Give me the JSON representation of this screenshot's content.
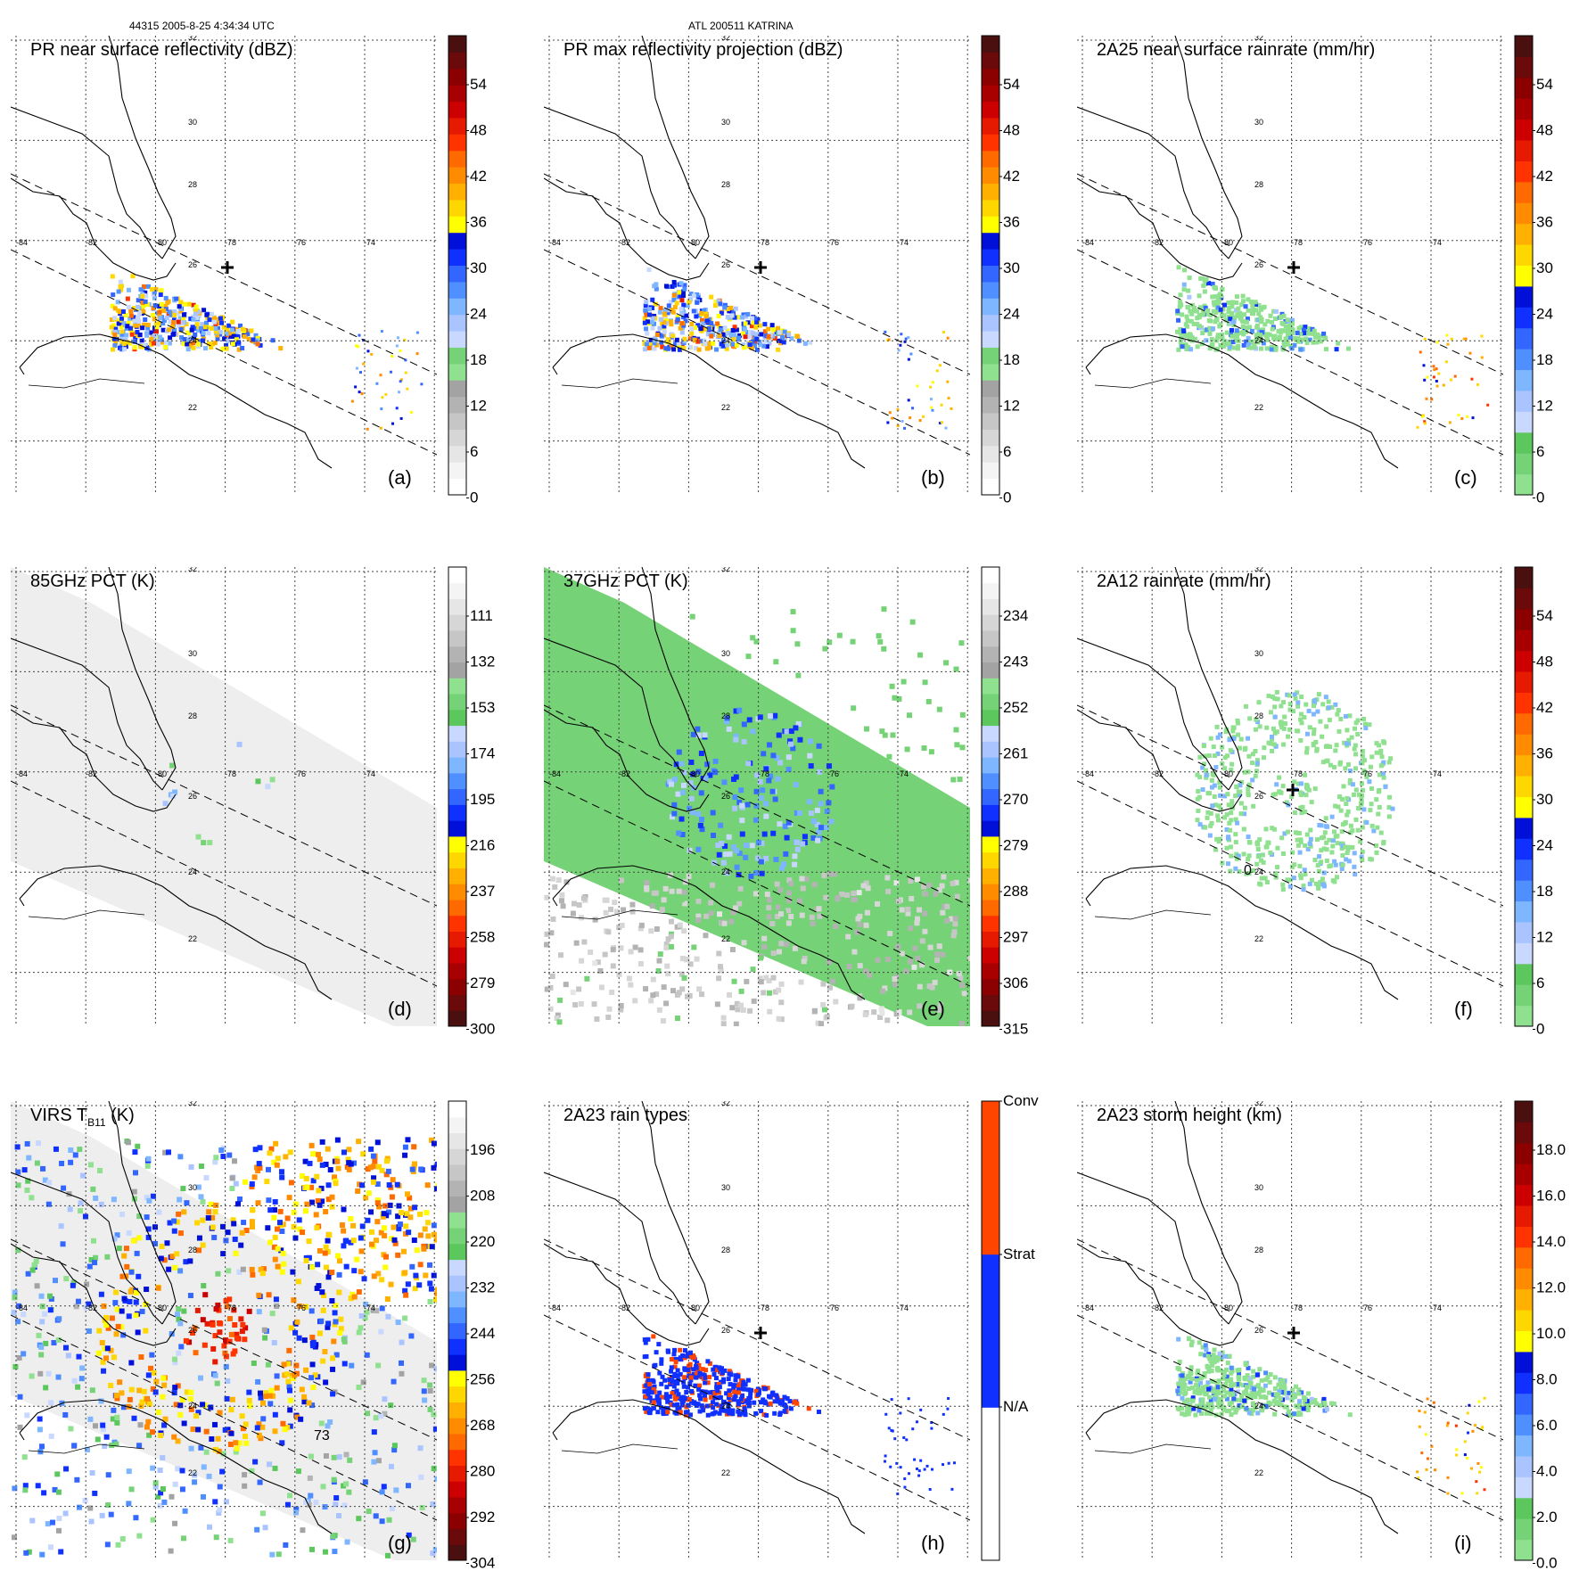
{
  "header": {
    "orbit_time": "44315 2005-8-25 4:34:34 UTC",
    "storm": "ATL 200511 KATRINA"
  },
  "palettes": {
    "refl": [
      "#ffffff",
      "#f4f4f4",
      "#e6e6e6",
      "#d6d6d6",
      "#c6c6c6",
      "#b3b3b3",
      "#a3a3a3",
      "#8fe08f",
      "#76d276",
      "#c8d8ff",
      "#a9c4ff",
      "#7eb6ff",
      "#4f8fff",
      "#3366ff",
      "#1030ff",
      "#0010d8",
      "#ffff00",
      "#ffd700",
      "#ffb000",
      "#ff8c00",
      "#ff6a00",
      "#ff3300",
      "#e61a00",
      "#cc0000",
      "#a80000",
      "#8b0000",
      "#6a0a0a",
      "#4a1010"
    ],
    "rain": [
      "#8fe08f",
      "#76d276",
      "#5cc75c",
      "#c8d8ff",
      "#a9c4ff",
      "#7eb6ff",
      "#4f8fff",
      "#3366ff",
      "#1030ff",
      "#0010d8",
      "#ffff00",
      "#ffd700",
      "#ffb000",
      "#ff8c00",
      "#ff6a00",
      "#ff3300",
      "#e61a00",
      "#cc0000",
      "#a80000",
      "#8b0000",
      "#6a0a0a",
      "#4a1010"
    ],
    "pct": [
      "#4a1010",
      "#6a0a0a",
      "#8b0000",
      "#a80000",
      "#cc0000",
      "#e61a00",
      "#ff3300",
      "#ff6a00",
      "#ff8c00",
      "#ffb000",
      "#ffd700",
      "#ffff00",
      "#0010d8",
      "#1030ff",
      "#3366ff",
      "#4f8fff",
      "#7eb6ff",
      "#a9c4ff",
      "#c8d8ff",
      "#5cc75c",
      "#76d276",
      "#8fe08f",
      "#a3a3a3",
      "#b3b3b3",
      "#c6c6c6",
      "#d6d6d6",
      "#e6e6e6",
      "#f4f4f4",
      "#ffffff"
    ],
    "types": [
      "#ffffff",
      "#ffffff",
      "#1030ff",
      "#1030ff",
      "#ff4500",
      "#ff4500"
    ]
  },
  "panels": [
    {
      "id": "a",
      "title": "PR near surface reflectivity (dBZ)",
      "letter": "(a)",
      "cbar_ticks": [
        "54",
        "48",
        "42",
        "36",
        "30",
        "24",
        "18",
        "12",
        "6",
        "0"
      ],
      "cbar_palette": "refl",
      "field": "refl"
    },
    {
      "id": "b",
      "title": "PR max reflectivity projection (dBZ)",
      "letter": "(b)",
      "cbar_ticks": [
        "54",
        "48",
        "42",
        "36",
        "30",
        "24",
        "18",
        "12",
        "6",
        "0"
      ],
      "cbar_palette": "refl",
      "field": "refl"
    },
    {
      "id": "c",
      "title": "2A25 near surface rainrate (mm/hr)",
      "letter": "(c)",
      "cbar_ticks": [
        "54",
        "48",
        "42",
        "36",
        "30",
        "24",
        "18",
        "12",
        "6",
        "0"
      ],
      "cbar_palette": "rain",
      "field": "rain"
    },
    {
      "id": "d",
      "title": "85GHz PCT (K)",
      "letter": "(d)",
      "cbar_ticks": [
        "111",
        "132",
        "153",
        "174",
        "195",
        "216",
        "237",
        "258",
        "279",
        "300"
      ],
      "cbar_palette": "pct",
      "field": "pct85"
    },
    {
      "id": "e",
      "title": "37GHz PCT (K)",
      "letter": "(e)",
      "cbar_ticks": [
        "234",
        "243",
        "252",
        "261",
        "270",
        "279",
        "288",
        "297",
        "306",
        "315"
      ],
      "cbar_palette": "pct",
      "field": "pct37"
    },
    {
      "id": "f",
      "title": "2A12 rainrate (mm/hr)",
      "letter": "(f)",
      "cbar_ticks": [
        "54",
        "48",
        "42",
        "36",
        "30",
        "24",
        "18",
        "12",
        "6",
        "0"
      ],
      "cbar_palette": "rain",
      "field": "tmi"
    },
    {
      "id": "g",
      "title": "VIRS T",
      "title_sub": "B11",
      "title_tail": " (K)",
      "letter": "(g)",
      "cbar_ticks": [
        "196",
        "208",
        "220",
        "232",
        "244",
        "256",
        "268",
        "280",
        "292",
        "304"
      ],
      "cbar_palette": "pct",
      "field": "virs"
    },
    {
      "id": "h",
      "title": "2A23 rain types",
      "letter": "(h)",
      "cbar_ticks": [
        "Conv",
        "Strat",
        "N/A"
      ],
      "cbar_palette": "types",
      "field": "types"
    },
    {
      "id": "i",
      "title": "2A23 storm height (km)",
      "letter": "(i)",
      "cbar_ticks": [
        "18.0",
        "16.0",
        "14.0",
        "12.0",
        "10.0",
        "8.0",
        "6.0",
        "4.0",
        "2.0",
        "0.0"
      ],
      "cbar_palette": "rain",
      "field": "height"
    }
  ],
  "map_labels": {
    "lat": [
      "32",
      "30",
      "28",
      "26",
      "24",
      "22"
    ],
    "lon": [
      "-84",
      "-82",
      "-80",
      "-78",
      "-76",
      "-74"
    ]
  },
  "contour_labels": {
    "f": "0",
    "g": "73"
  }
}
